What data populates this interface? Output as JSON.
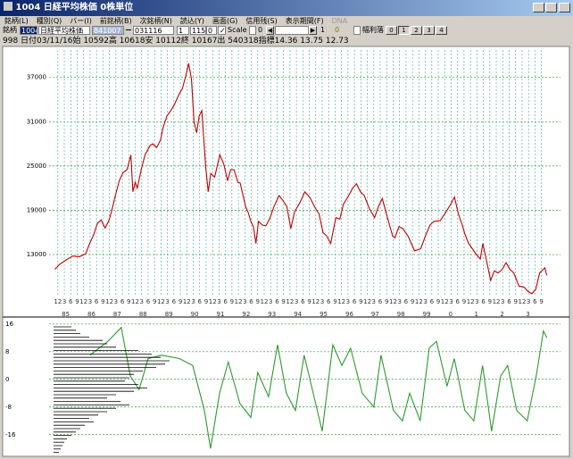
{
  "window": {
    "title": "1004 日経平均株価 0株単位"
  },
  "menu": [
    "銘柄(L)",
    "種別(Q)",
    "バー(I)",
    "前銘柄(B)",
    "次銘柄(N)",
    "読込(Y)",
    "画面(G)",
    "信用残(S)",
    "表示期間(F)",
    "DNA"
  ],
  "toolbar": {
    "code_label": "銘柄",
    "code": "1004",
    "name": "日経平均株価",
    "start": "841007",
    "end": "031116",
    "field1": "1",
    "field2": "1150",
    "field3": "0",
    "scale": "Scale",
    "scale_value": "0",
    "field4": "1",
    "field5": "0",
    "option": "幅利落",
    "buttons": [
      "0",
      "1",
      "2",
      "3",
      "4"
    ]
  },
  "status": "998 日付03/11/16始 10592高 10618安 10112終 10167出 540318指標14.36  13.75  12.73",
  "chart_data": [
    {
      "type": "line",
      "color": "#c00000",
      "x": [
        1984.8,
        1985.0,
        1985.25,
        1985.5,
        1985.75,
        1986.0,
        1986.15,
        1986.3,
        1986.45,
        1986.6,
        1986.75,
        1986.9,
        1987.0,
        1987.15,
        1987.3,
        1987.45,
        1987.6,
        1987.75,
        1987.83,
        1987.92,
        1988.0,
        1988.15,
        1988.3,
        1988.5,
        1988.6,
        1988.75,
        1988.9,
        1989.0,
        1989.15,
        1989.3,
        1989.45,
        1989.6,
        1989.75,
        1989.9,
        1989.99,
        1990.1,
        1990.2,
        1990.3,
        1990.4,
        1990.5,
        1990.58,
        1990.65,
        1990.75,
        1990.85,
        1991.0,
        1991.2,
        1991.35,
        1991.5,
        1991.62,
        1991.75,
        1991.9,
        1991.99,
        1992.1,
        1992.2,
        1992.3,
        1992.4,
        1992.5,
        1992.6,
        1992.7,
        1992.85,
        1992.99,
        1993.15,
        1993.3,
        1993.5,
        1993.65,
        1993.8,
        1993.95,
        1994.1,
        1994.3,
        1994.5,
        1994.7,
        1994.9,
        1995.05,
        1995.2,
        1995.35,
        1995.5,
        1995.7,
        1995.85,
        1995.99,
        1996.2,
        1996.35,
        1996.5,
        1996.65,
        1996.8,
        1996.99,
        1997.2,
        1997.35,
        1997.5,
        1997.7,
        1997.9,
        1997.99,
        1998.15,
        1998.3,
        1998.5,
        1998.75,
        1998.99,
        1999.2,
        1999.35,
        1999.5,
        1999.75,
        1999.99,
        2000.15,
        2000.3,
        2000.45,
        2000.6,
        2000.7,
        2000.85,
        2000.99,
        2001.15,
        2001.3,
        2001.4,
        2001.55,
        2001.7,
        2001.85,
        2001.99,
        2002.15,
        2002.3,
        2002.45,
        2002.6,
        2002.8,
        2002.99,
        2003.15,
        2003.3,
        2003.45,
        2003.6,
        2003.8,
        2003.88
      ],
      "values": [
        11000,
        11700,
        12300,
        12800,
        12700,
        13100,
        14500,
        15600,
        17200,
        17700,
        16600,
        17600,
        18800,
        21000,
        23000,
        24100,
        24500,
        26500,
        21500,
        22800,
        22000,
        24500,
        26500,
        27800,
        28000,
        27500,
        28500,
        30200,
        31800,
        32500,
        33400,
        34600,
        35500,
        37500,
        38900,
        36800,
        31000,
        29500,
        31800,
        32500,
        28500,
        25000,
        21500,
        24000,
        23500,
        26500,
        25300,
        23000,
        24500,
        24500,
        22800,
        22700,
        21000,
        19500,
        18700,
        17500,
        16800,
        14500,
        17500,
        17000,
        16900,
        18000,
        19500,
        21000,
        20300,
        19500,
        16500,
        18800,
        20000,
        21500,
        20700,
        19300,
        18500,
        16000,
        15500,
        14500,
        18000,
        17800,
        19800,
        21000,
        22000,
        22600,
        21500,
        21000,
        19300,
        18000,
        19500,
        20600,
        18000,
        15500,
        15300,
        16800,
        16500,
        15500,
        13500,
        13800,
        15800,
        17000,
        17500,
        17600,
        18900,
        19800,
        20800,
        18500,
        17000,
        15800,
        14500,
        13800,
        13000,
        12400,
        14500,
        12000,
        9500,
        10800,
        10500,
        11000,
        11900,
        11000,
        10500,
        8700,
        8600,
        8000,
        7700,
        8300,
        10500,
        11200,
        10167
      ],
      "xlim": [
        1984.58,
        2004.41
      ],
      "ylim": [
        7200,
        41200
      ],
      "yticks": [
        13000,
        19000,
        25000,
        31000,
        37000
      ],
      "grid": true,
      "xticks": [
        {
          "value": 1984.92,
          "label": "12"
        },
        {
          "value": 1985.17,
          "label": "3"
        },
        {
          "value": 1985.42,
          "label": "6"
        },
        {
          "value": 1985.67,
          "label": "9"
        },
        {
          "value": 1985.92,
          "label": "12"
        },
        {
          "value": 1986.17,
          "label": "3"
        },
        {
          "value": 1986.42,
          "label": "6"
        },
        {
          "value": 1986.67,
          "label": "9"
        },
        {
          "value": 1986.92,
          "label": "12"
        },
        {
          "value": 1987.17,
          "label": "3"
        },
        {
          "value": 1987.42,
          "label": "6"
        },
        {
          "value": 1987.67,
          "label": "9"
        },
        {
          "value": 1987.92,
          "label": "12"
        },
        {
          "value": 1988.17,
          "label": "3"
        },
        {
          "value": 1988.42,
          "label": "6"
        },
        {
          "value": 1988.67,
          "label": "9"
        },
        {
          "value": 1988.92,
          "label": "12"
        },
        {
          "value": 1989.17,
          "label": "3"
        },
        {
          "value": 1989.42,
          "label": "6"
        },
        {
          "value": 1989.67,
          "label": "9"
        },
        {
          "value": 1989.92,
          "label": "12"
        },
        {
          "value": 1990.17,
          "label": "3"
        },
        {
          "value": 1990.42,
          "label": "6"
        },
        {
          "value": 1990.67,
          "label": "9"
        },
        {
          "value": 1990.92,
          "label": "12"
        },
        {
          "value": 1991.17,
          "label": "3"
        },
        {
          "value": 1991.42,
          "label": "6"
        },
        {
          "value": 1991.67,
          "label": "9"
        },
        {
          "value": 1991.92,
          "label": "12"
        },
        {
          "value": 1992.17,
          "label": "3"
        },
        {
          "value": 1992.42,
          "label": "6"
        },
        {
          "value": 1992.67,
          "label": "9"
        },
        {
          "value": 1992.92,
          "label": "12"
        },
        {
          "value": 1993.17,
          "label": "3"
        },
        {
          "value": 1993.42,
          "label": "6"
        },
        {
          "value": 1993.67,
          "label": "9"
        },
        {
          "value": 1993.92,
          "label": "12"
        },
        {
          "value": 1994.17,
          "label": "3"
        },
        {
          "value": 1994.42,
          "label": "6"
        },
        {
          "value": 1994.67,
          "label": "9"
        },
        {
          "value": 1994.92,
          "label": "12"
        },
        {
          "value": 1995.17,
          "label": "3"
        },
        {
          "value": 1995.42,
          "label": "6"
        },
        {
          "value": 1995.67,
          "label": "9"
        },
        {
          "value": 1995.92,
          "label": "12"
        },
        {
          "value": 1996.17,
          "label": "3"
        },
        {
          "value": 1996.42,
          "label": "6"
        },
        {
          "value": 1996.67,
          "label": "9"
        },
        {
          "value": 1996.92,
          "label": "12"
        },
        {
          "value": 1997.17,
          "label": "3"
        },
        {
          "value": 1997.42,
          "label": "6"
        },
        {
          "value": 1997.67,
          "label": "9"
        },
        {
          "value": 1997.92,
          "label": "12"
        },
        {
          "value": 1998.17,
          "label": "3"
        },
        {
          "value": 1998.42,
          "label": "6"
        },
        {
          "value": 1998.67,
          "label": "9"
        },
        {
          "value": 1998.92,
          "label": "12"
        },
        {
          "value": 1999.17,
          "label": "3"
        },
        {
          "value": 1999.42,
          "label": "6"
        },
        {
          "value": 1999.67,
          "label": "9"
        },
        {
          "value": 1999.92,
          "label": "12"
        },
        {
          "value": 2000.17,
          "label": "3"
        },
        {
          "value": 2000.42,
          "label": "6"
        },
        {
          "value": 2000.67,
          "label": "9"
        },
        {
          "value": 2000.92,
          "label": "12"
        },
        {
          "value": 2001.17,
          "label": "3"
        },
        {
          "value": 2001.42,
          "label": "6"
        },
        {
          "value": 2001.67,
          "label": "9"
        },
        {
          "value": 2001.92,
          "label": "12"
        },
        {
          "value": 2002.17,
          "label": "3"
        },
        {
          "value": 2002.42,
          "label": "6"
        },
        {
          "value": 2002.67,
          "label": "9"
        },
        {
          "value": 2002.92,
          "label": "12"
        },
        {
          "value": 2003.17,
          "label": "3"
        },
        {
          "value": 2003.42,
          "label": "6"
        },
        {
          "value": 2003.67,
          "label": "9"
        }
      ],
      "year_ticks": [
        {
          "value": 1985,
          "label": "85"
        },
        {
          "value": 1986,
          "label": "86"
        },
        {
          "value": 1987,
          "label": "87"
        },
        {
          "value": 1988,
          "label": "88"
        },
        {
          "value": 1989,
          "label": "89"
        },
        {
          "value": 1990,
          "label": "90"
        },
        {
          "value": 1991,
          "label": "91"
        },
        {
          "value": 1992,
          "label": "92"
        },
        {
          "value": 1993,
          "label": "93"
        },
        {
          "value": 1994,
          "label": "94"
        },
        {
          "value": 1995,
          "label": "95"
        },
        {
          "value": 1996,
          "label": "96"
        },
        {
          "value": 1997,
          "label": "97"
        },
        {
          "value": 1998,
          "label": "98"
        },
        {
          "value": 1999,
          "label": "99"
        },
        {
          "value": 2000,
          "label": "0"
        },
        {
          "value": 2001,
          "label": "1"
        },
        {
          "value": 2002,
          "label": "2"
        },
        {
          "value": 2003,
          "label": "3"
        }
      ]
    },
    {
      "type": "line",
      "color": "#2e9a2e",
      "x": [
        1986.17,
        1986.86,
        1987.38,
        1987.73,
        1988.07,
        1988.42,
        1988.94,
        1989.63,
        1990.15,
        1990.6,
        1990.84,
        1991.19,
        1991.53,
        1991.98,
        1992.4,
        1992.67,
        1993.09,
        1993.44,
        1993.78,
        1994.13,
        1994.47,
        1994.82,
        1995.17,
        1995.58,
        1995.93,
        1996.27,
        1996.72,
        1997.17,
        1997.45,
        1997.93,
        1998.28,
        1998.56,
        1998.97,
        1999.32,
        1999.6,
        2000.01,
        2000.29,
        2000.7,
        2001.05,
        2001.39,
        2001.74,
        2002.09,
        2002.36,
        2002.71,
        2003.12,
        2003.47,
        2003.75,
        2003.88
      ],
      "values": [
        7,
        11,
        15,
        1,
        -3,
        6,
        7,
        6,
        4,
        -9,
        -20,
        -4,
        5,
        -7,
        -11,
        2,
        -5,
        10,
        -4,
        -9,
        7,
        -4,
        -15,
        10,
        4,
        9,
        -4,
        -8,
        7,
        -9,
        -12,
        -4,
        -12,
        9,
        11,
        -2,
        6,
        -9,
        -12,
        4,
        -15,
        1,
        4,
        -9,
        -12,
        1,
        14,
        12
      ],
      "xlim": [
        1984.58,
        2004.41
      ],
      "ylim": [
        -22,
        17.5
      ],
      "yticks": [
        -16,
        -8,
        0,
        8,
        16
      ],
      "grid": true
    },
    {
      "type": "profile",
      "color": "#000000",
      "values": [
        20,
        25,
        30,
        40,
        55,
        60,
        70,
        95,
        110,
        120,
        130,
        125,
        115,
        100,
        90,
        85,
        80,
        95,
        105,
        90,
        70,
        60,
        75,
        85,
        70,
        60,
        50,
        40,
        45,
        35,
        30,
        25,
        20,
        15,
        12,
        10,
        8,
        6
      ]
    }
  ]
}
